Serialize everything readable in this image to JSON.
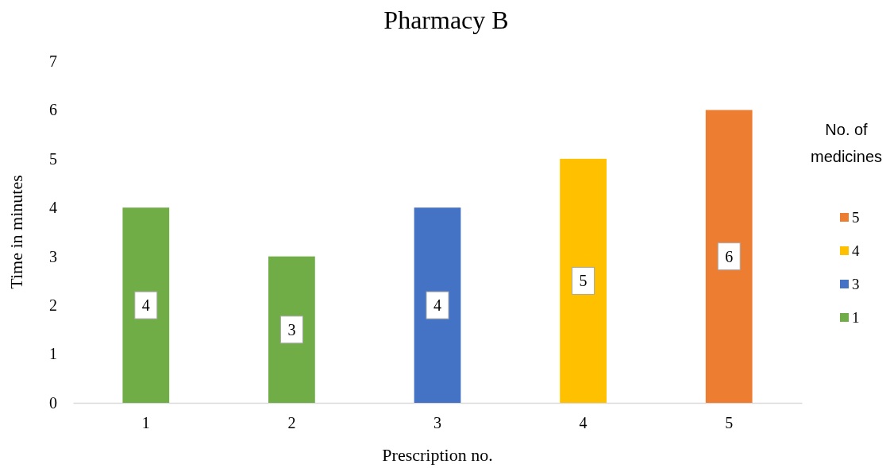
{
  "chart_data": {
    "type": "bar",
    "title": "Pharmacy B",
    "xlabel": "Prescription no.",
    "ylabel": "Time in minutes",
    "legend_title": "No. of medicines",
    "categories": [
      "1",
      "2",
      "3",
      "4",
      "5"
    ],
    "data_labels": true,
    "legend": "right",
    "grid": false,
    "ylim": [
      0,
      7
    ],
    "yticks": [
      0,
      1,
      2,
      3,
      4,
      5,
      6,
      7
    ],
    "series": [
      {
        "name": "1",
        "color": "#70ad47",
        "values": [
          4,
          3,
          null,
          null,
          null
        ]
      },
      {
        "name": "3",
        "color": "#4472c4",
        "values": [
          null,
          null,
          4,
          null,
          null
        ]
      },
      {
        "name": "4",
        "color": "#ffc000",
        "values": [
          null,
          null,
          null,
          5,
          null
        ]
      },
      {
        "name": "5",
        "color": "#ed7d31",
        "values": [
          null,
          null,
          null,
          null,
          6
        ]
      }
    ]
  }
}
